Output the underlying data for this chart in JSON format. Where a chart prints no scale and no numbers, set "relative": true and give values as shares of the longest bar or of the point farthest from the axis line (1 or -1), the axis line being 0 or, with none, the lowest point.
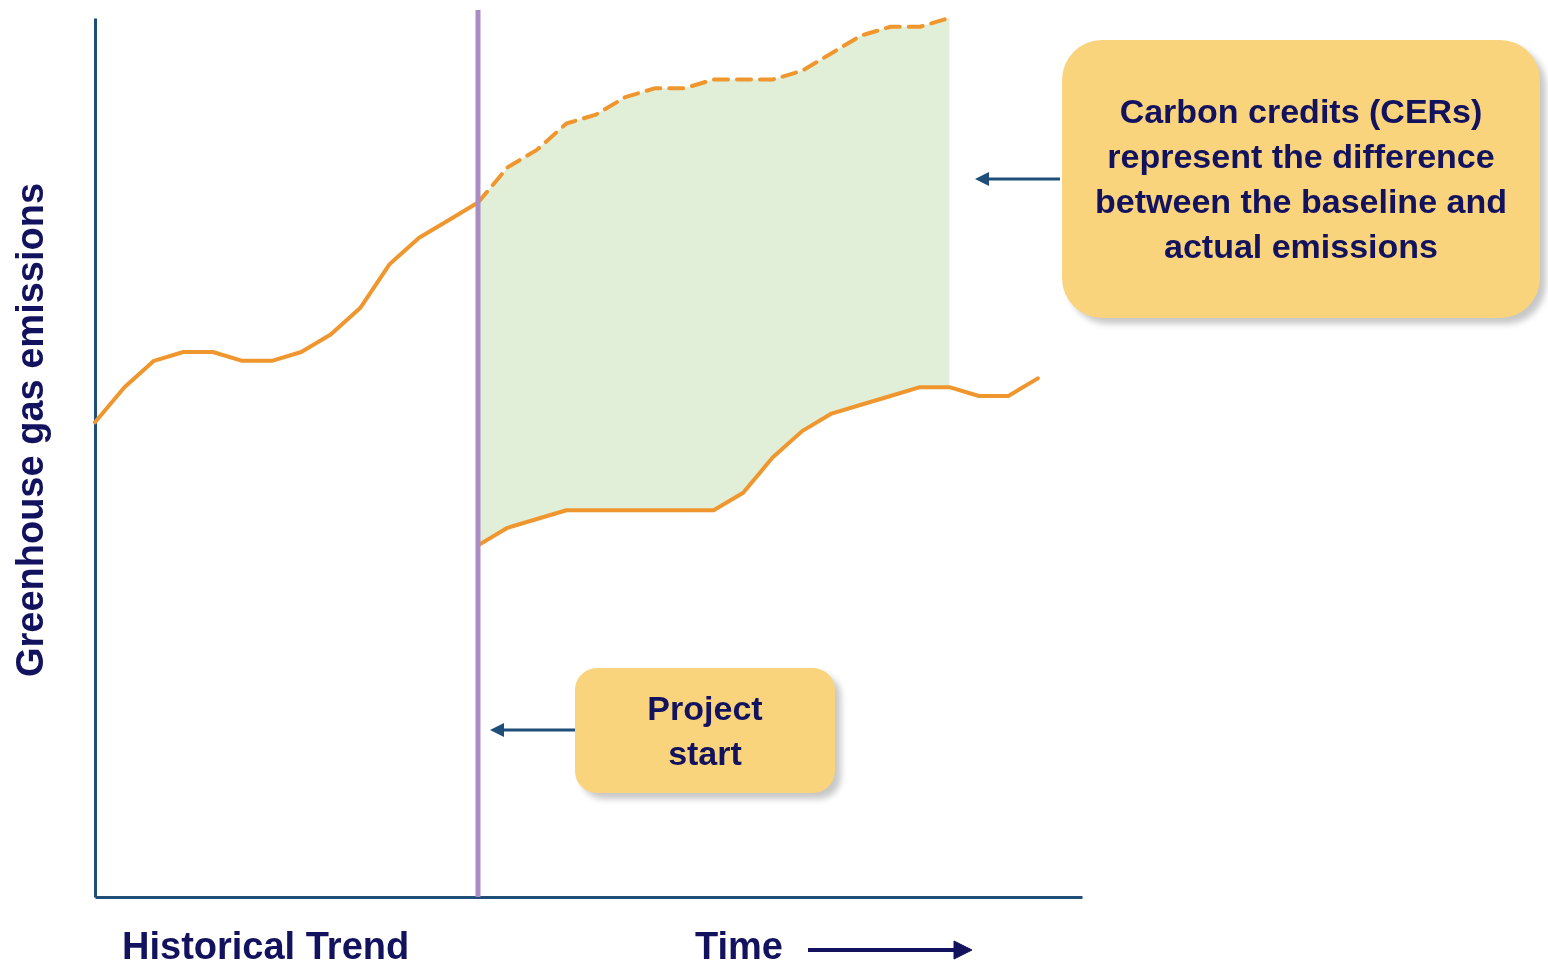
{
  "chart_data": {
    "type": "line",
    "relative": true,
    "xlabel": "Time",
    "ylabel": "Greenhouse gas emissions",
    "categories": [
      null,
      null,
      null,
      null,
      null,
      null,
      null,
      null,
      null,
      null,
      null,
      null,
      null,
      null,
      null,
      null,
      null,
      null,
      null,
      null,
      null,
      null,
      null,
      null,
      null,
      null,
      null,
      null,
      null,
      null,
      null,
      null,
      null
    ],
    "series": [
      {
        "color": "#f0962e",
        "line_style": "solid",
        "values": [
          0.54,
          0.58,
          0.61,
          0.62,
          0.62,
          0.61,
          0.61,
          0.62,
          0.64,
          0.67,
          0.72,
          0.75,
          0.77,
          0.79,
          null,
          null,
          null,
          null,
          null,
          null,
          null,
          null,
          null,
          null,
          null,
          null,
          null,
          null,
          null,
          null,
          null,
          null,
          null
        ]
      },
      {
        "color": "#f0962e",
        "line_style": "dashed",
        "values": [
          null,
          null,
          null,
          null,
          null,
          null,
          null,
          null,
          null,
          null,
          null,
          null,
          null,
          0.79,
          0.83,
          0.85,
          0.88,
          0.89,
          0.91,
          0.92,
          0.92,
          0.93,
          0.93,
          0.93,
          0.94,
          0.96,
          0.98,
          0.99,
          0.99,
          1.0,
          null,
          null,
          null
        ],
        "lower": [
          null,
          null,
          null,
          null,
          null,
          null,
          null,
          null,
          null,
          null,
          null,
          null,
          null,
          0.4,
          0.42,
          0.43,
          0.44,
          0.44,
          0.44,
          0.44,
          0.44,
          0.44,
          0.46,
          0.5,
          0.53,
          0.55,
          0.56,
          0.57,
          0.58,
          0.58,
          null,
          null,
          null
        ],
        "upper": [
          null,
          null,
          null,
          null,
          null,
          null,
          null,
          null,
          null,
          null,
          null,
          null,
          null,
          0.79,
          0.83,
          0.85,
          0.88,
          0.89,
          0.91,
          0.92,
          0.92,
          0.93,
          0.93,
          0.93,
          0.94,
          0.96,
          0.98,
          0.99,
          0.99,
          1.0,
          null,
          null,
          null
        ]
      },
      {
        "color": "#f0962e",
        "line_style": "solid",
        "values": [
          null,
          null,
          null,
          null,
          null,
          null,
          null,
          null,
          null,
          null,
          null,
          null,
          null,
          0.4,
          0.42,
          0.43,
          0.44,
          0.44,
          0.44,
          0.44,
          0.44,
          0.44,
          0.46,
          0.5,
          0.53,
          0.55,
          0.56,
          0.57,
          0.58,
          0.58,
          0.57,
          0.57,
          0.59
        ]
      }
    ],
    "annotations": [
      {
        "text": "Carbon credits (CERs) represent the difference between the baseline and actual emissions"
      },
      {
        "text": "Project start"
      },
      {
        "text": "Historical Trend"
      }
    ]
  }
}
